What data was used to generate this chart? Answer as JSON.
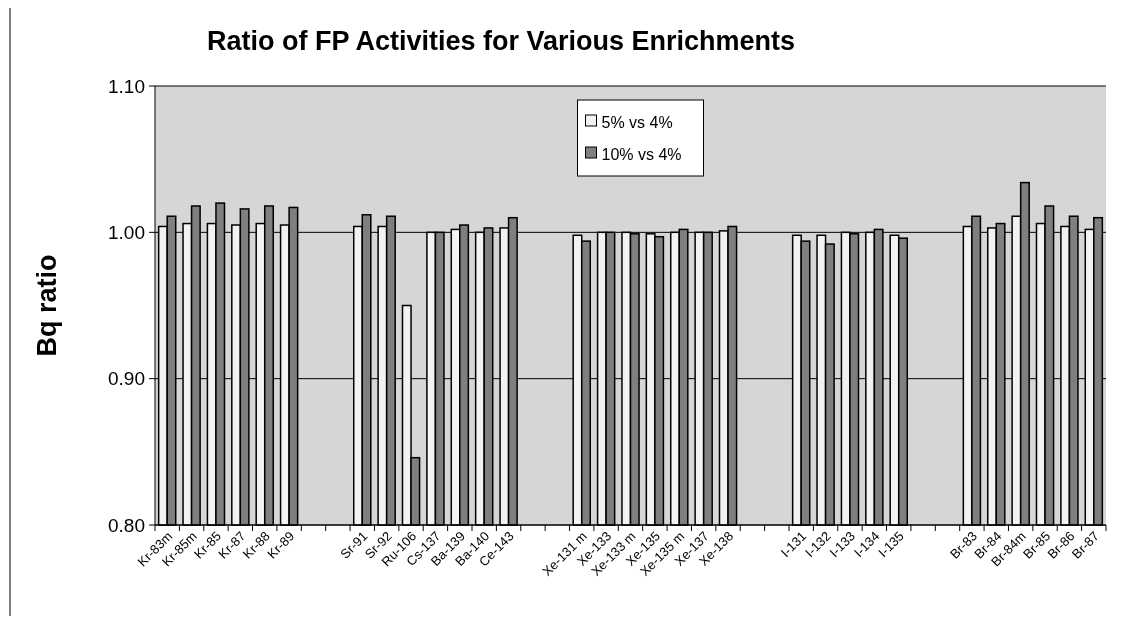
{
  "chart_data": {
    "type": "bar",
    "title": "Ratio of FP Activities for Various Enrichments",
    "ylabel": "Bq ratio",
    "categories": [
      "Kr-83m",
      "Kr-85m",
      "Kr-85",
      "Kr-87",
      "Kr-88",
      "Kr-89",
      null,
      null,
      "Sr-91",
      "Sr-92",
      "Ru-106",
      "Cs-137",
      "Ba-139",
      "Ba-140",
      "Ce-143",
      null,
      null,
      "Xe-131 m",
      "Xe-133",
      "Xe-133 m",
      "Xe-135",
      "Xe-135 m",
      "Xe-137",
      "Xe-138",
      null,
      null,
      "I-131",
      "I-132",
      "I-133",
      "I-134",
      "I-135",
      null,
      null,
      "Br-83",
      "Br-84",
      "Br-84m",
      "Br-85",
      "Br-86",
      "Br-87"
    ],
    "series": [
      {
        "name": "5% vs 4%",
        "color": "#f2f2f2",
        "values": [
          1.004,
          1.006,
          1.006,
          1.005,
          1.006,
          1.005,
          null,
          null,
          1.004,
          1.004,
          0.95,
          1.0,
          1.002,
          1.0,
          1.003,
          null,
          null,
          0.998,
          1.0,
          1.0,
          0.999,
          1.0,
          1.0,
          1.001,
          null,
          null,
          0.998,
          0.998,
          1.0,
          1.0,
          0.998,
          null,
          null,
          1.004,
          1.003,
          1.011,
          1.006,
          1.004,
          1.002
        ]
      },
      {
        "name": "10% vs 4%",
        "color": "#7f7f7f",
        "values": [
          1.011,
          1.018,
          1.02,
          1.016,
          1.018,
          1.017,
          null,
          null,
          1.012,
          1.011,
          0.846,
          1.0,
          1.005,
          1.003,
          1.01,
          null,
          null,
          0.994,
          1.0,
          0.999,
          0.997,
          1.002,
          1.0,
          1.004,
          null,
          null,
          0.994,
          0.992,
          0.999,
          1.002,
          0.996,
          null,
          null,
          1.011,
          1.006,
          1.034,
          1.018,
          1.011,
          1.01
        ]
      }
    ],
    "ylim": [
      0.8,
      1.1
    ],
    "yticks": [
      {
        "value": 0.8,
        "label": "0.80"
      },
      {
        "value": 0.9,
        "label": "0.90"
      },
      {
        "value": 1.0,
        "label": "1.00"
      },
      {
        "value": 1.1,
        "label": "1.10"
      }
    ],
    "grid": "y",
    "legend": "top"
  }
}
